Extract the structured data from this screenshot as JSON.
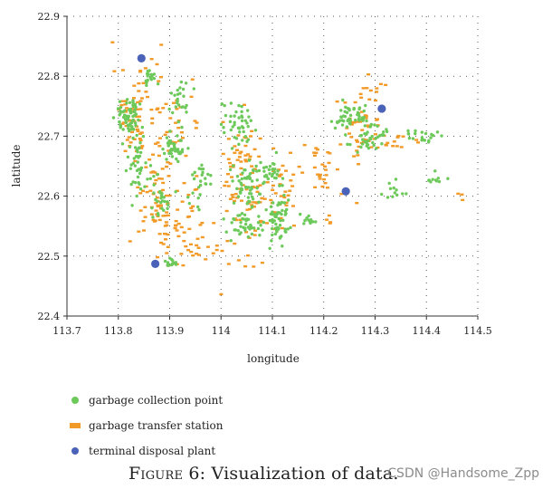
{
  "chart_data": {
    "type": "scatter",
    "title": "",
    "xlabel": "longitude",
    "ylabel": "latitude",
    "xlim": [
      113.7,
      114.5
    ],
    "ylim": [
      22.4,
      22.9
    ],
    "x_ticks": [
      "113.7",
      "113.8",
      "113.9",
      "114",
      "114.1",
      "114.2",
      "114.3",
      "114.4",
      "114.5"
    ],
    "y_ticks": [
      "22.4",
      "22.5",
      "22.6",
      "22.7",
      "22.8",
      "22.9"
    ],
    "grid": "dotted",
    "legend_position": "bottom-left",
    "series": [
      {
        "name": "garbage collection point",
        "marker": "circle-small",
        "color": "#6cc95a",
        "clusters": [
          {
            "x": 113.82,
            "y": 22.73,
            "sx": 0.012,
            "sy": 0.02,
            "n": 70
          },
          {
            "x": 113.86,
            "y": 22.8,
            "sx": 0.008,
            "sy": 0.008,
            "n": 18
          },
          {
            "x": 113.84,
            "y": 22.65,
            "sx": 0.01,
            "sy": 0.025,
            "n": 40
          },
          {
            "x": 113.92,
            "y": 22.76,
            "sx": 0.01,
            "sy": 0.02,
            "n": 25
          },
          {
            "x": 113.91,
            "y": 22.68,
            "sx": 0.01,
            "sy": 0.01,
            "n": 40
          },
          {
            "x": 113.88,
            "y": 22.6,
            "sx": 0.012,
            "sy": 0.015,
            "n": 25
          },
          {
            "x": 113.9,
            "y": 22.49,
            "sx": 0.006,
            "sy": 0.006,
            "n": 15
          },
          {
            "x": 113.96,
            "y": 22.62,
            "sx": 0.01,
            "sy": 0.02,
            "n": 25
          },
          {
            "x": 114.03,
            "y": 22.72,
            "sx": 0.015,
            "sy": 0.02,
            "n": 45
          },
          {
            "x": 114.05,
            "y": 22.62,
            "sx": 0.015,
            "sy": 0.02,
            "n": 60
          },
          {
            "x": 114.05,
            "y": 22.55,
            "sx": 0.02,
            "sy": 0.012,
            "n": 40
          },
          {
            "x": 114.11,
            "y": 22.56,
            "sx": 0.012,
            "sy": 0.02,
            "n": 60
          },
          {
            "x": 114.1,
            "y": 22.64,
            "sx": 0.012,
            "sy": 0.012,
            "n": 25
          },
          {
            "x": 114.17,
            "y": 22.56,
            "sx": 0.008,
            "sy": 0.004,
            "n": 12
          },
          {
            "x": 114.25,
            "y": 22.73,
            "sx": 0.02,
            "sy": 0.01,
            "n": 50
          },
          {
            "x": 114.29,
            "y": 22.7,
            "sx": 0.015,
            "sy": 0.012,
            "n": 40
          },
          {
            "x": 114.4,
            "y": 22.7,
            "sx": 0.02,
            "sy": 0.006,
            "n": 20
          },
          {
            "x": 114.42,
            "y": 22.63,
            "sx": 0.008,
            "sy": 0.006,
            "n": 10
          },
          {
            "x": 114.34,
            "y": 22.61,
            "sx": 0.015,
            "sy": 0.01,
            "n": 12
          }
        ]
      },
      {
        "name": "garbage transfer station",
        "marker": "dash",
        "color": "#f29a27",
        "clusters": [
          {
            "x": 113.83,
            "y": 22.74,
            "sx": 0.02,
            "sy": 0.04,
            "n": 60
          },
          {
            "x": 113.87,
            "y": 22.6,
            "sx": 0.025,
            "sy": 0.05,
            "n": 60
          },
          {
            "x": 113.92,
            "y": 22.55,
            "sx": 0.03,
            "sy": 0.04,
            "n": 50
          },
          {
            "x": 113.9,
            "y": 22.73,
            "sx": 0.03,
            "sy": 0.05,
            "n": 40
          },
          {
            "x": 114.04,
            "y": 22.66,
            "sx": 0.02,
            "sy": 0.03,
            "n": 50
          },
          {
            "x": 114.07,
            "y": 22.58,
            "sx": 0.03,
            "sy": 0.03,
            "n": 45
          },
          {
            "x": 114.12,
            "y": 22.62,
            "sx": 0.02,
            "sy": 0.03,
            "n": 30
          },
          {
            "x": 114.2,
            "y": 22.64,
            "sx": 0.02,
            "sy": 0.02,
            "n": 25
          },
          {
            "x": 114.27,
            "y": 22.71,
            "sx": 0.025,
            "sy": 0.03,
            "n": 45
          },
          {
            "x": 114.33,
            "y": 22.69,
            "sx": 0.03,
            "sy": 0.01,
            "n": 15
          },
          {
            "x": 114.3,
            "y": 22.78,
            "sx": 0.01,
            "sy": 0.01,
            "n": 10
          },
          {
            "x": 114.47,
            "y": 22.6,
            "sx": 0.005,
            "sy": 0.005,
            "n": 3
          },
          {
            "x": 114.21,
            "y": 22.56,
            "sx": 0.005,
            "sy": 0.005,
            "n": 4
          },
          {
            "x": 114.0,
            "y": 22.5,
            "sx": 0.04,
            "sy": 0.02,
            "n": 20
          }
        ]
      },
      {
        "name": "terminal disposal plant",
        "marker": "circle-large",
        "color": "#4a63b8",
        "points": [
          {
            "x": 113.845,
            "y": 22.83
          },
          {
            "x": 113.872,
            "y": 22.487
          },
          {
            "x": 114.243,
            "y": 22.608
          },
          {
            "x": 114.313,
            "y": 22.746
          }
        ]
      }
    ]
  },
  "legend": {
    "items": [
      {
        "label": "garbage collection point",
        "color": "#6cc95a"
      },
      {
        "label": "garbage transfer station",
        "color": "#f29a27"
      },
      {
        "label": "terminal disposal plant",
        "color": "#4a63b8"
      }
    ]
  },
  "caption": {
    "figure_label": "Figure 6:",
    "text": "Visualization of data."
  },
  "watermark": "CSDN @Handsome_Zpp"
}
